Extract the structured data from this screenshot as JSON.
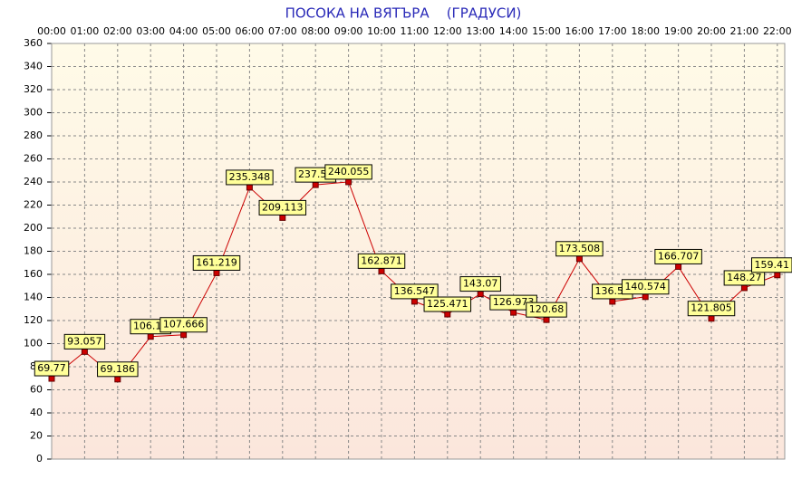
{
  "chart_data": {
    "type": "line",
    "title": "ПОСОКА НА ВЯТЪРА    (ГРАДУСИ)",
    "categories": [
      "00:00",
      "01:00",
      "02:00",
      "03:00",
      "04:00",
      "05:00",
      "06:00",
      "07:00",
      "08:00",
      "09:00",
      "10:00",
      "11:00",
      "12:00",
      "13:00",
      "14:00",
      "15:00",
      "16:00",
      "17:00",
      "18:00",
      "19:00",
      "20:00",
      "21:00",
      "22:00"
    ],
    "series": [
      {
        "name": "ПОСОКА НА ВЯТЪРА",
        "color": "#cc0000",
        "values": [
          69.77,
          93.057,
          69.186,
          106.12,
          107.666,
          161.219,
          235.348,
          209.113,
          237.55,
          240.055,
          162.871,
          136.547,
          125.471,
          143.07,
          126.973,
          120.68,
          173.508,
          136.51,
          140.574,
          166.707,
          121.805,
          148.27,
          159.41
        ]
      }
    ],
    "ylim": [
      0,
      360
    ],
    "yticks": [
      0,
      20,
      40,
      60,
      80,
      100,
      120,
      140,
      160,
      180,
      200,
      220,
      240,
      260,
      280,
      300,
      320,
      340,
      360
    ],
    "grid": true
  }
}
